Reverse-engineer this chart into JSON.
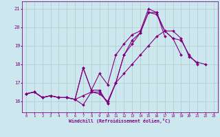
{
  "xlabel": "Windchill (Refroidissement éolien,°C)",
  "bg_color": "#cce8ee",
  "line_color": "#800080",
  "grid_color": "#b0c8cc",
  "xlim": [
    -0.5,
    23.5
  ],
  "ylim": [
    15.4,
    21.4
  ],
  "yticks": [
    16,
    17,
    18,
    19,
    20,
    21
  ],
  "xticks": [
    0,
    1,
    2,
    3,
    4,
    5,
    6,
    7,
    8,
    9,
    10,
    11,
    12,
    13,
    14,
    15,
    16,
    17,
    18,
    19,
    20,
    21,
    22,
    23
  ],
  "series": [
    [
      16.4,
      16.5,
      16.2,
      16.3,
      16.2,
      16.2,
      16.1,
      17.8,
      16.6,
      16.6,
      15.9,
      17.0,
      18.5,
      19.1,
      19.7,
      20.8,
      20.7,
      19.8,
      19.4,
      19.3,
      18.5,
      18.0,
      null,
      null
    ],
    [
      16.4,
      16.5,
      16.2,
      16.3,
      16.2,
      16.2,
      16.1,
      17.8,
      16.6,
      17.5,
      16.9,
      18.5,
      19.1,
      19.6,
      19.8,
      21.0,
      20.8,
      19.5,
      null,
      null,
      null,
      null,
      null,
      null
    ],
    [
      16.4,
      16.5,
      16.2,
      16.3,
      16.2,
      16.2,
      16.1,
      15.8,
      16.5,
      16.5,
      15.9,
      17.0,
      18.5,
      19.3,
      19.7,
      20.8,
      20.8,
      19.8,
      19.4,
      18.5,
      null,
      null,
      null,
      null
    ],
    [
      16.4,
      16.5,
      16.2,
      16.3,
      16.2,
      16.2,
      16.1,
      16.3,
      16.5,
      16.4,
      16.0,
      17.0,
      17.5,
      18.0,
      18.5,
      19.0,
      19.5,
      19.8,
      19.8,
      19.4,
      18.4,
      18.1,
      18.0,
      null
    ]
  ]
}
